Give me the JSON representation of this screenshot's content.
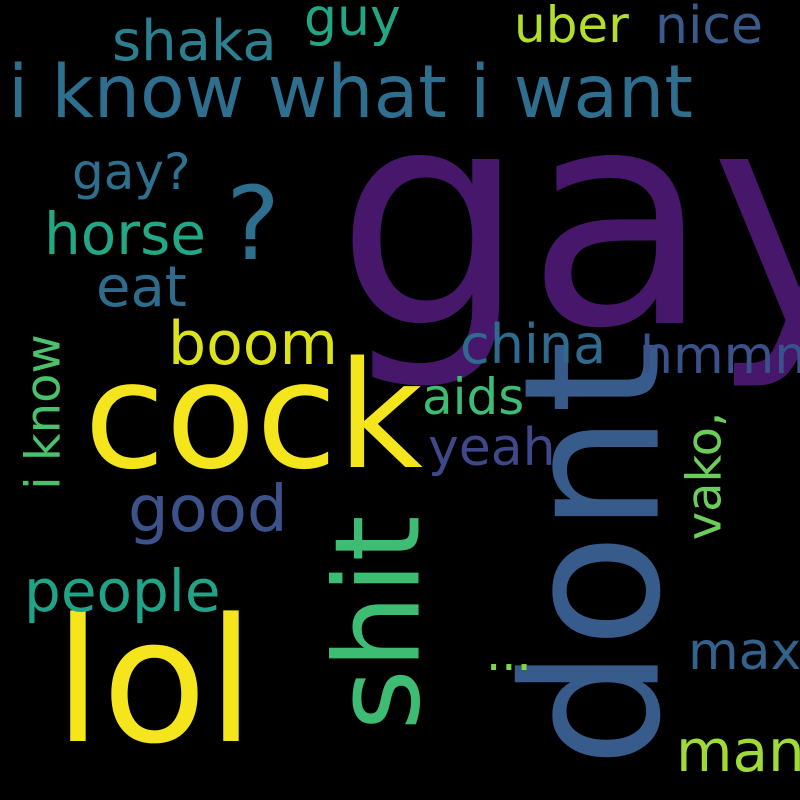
{
  "cloud": {
    "background": "#000000",
    "words": {
      "gay": {
        "text": "gay",
        "color": "#46176A"
      },
      "dont": {
        "text": "dont",
        "color": "#375C8C"
      },
      "cock": {
        "text": "cock",
        "color": "#F5E51D"
      },
      "lol": {
        "text": "lol",
        "color": "#F5E51D"
      },
      "shit": {
        "text": "shit",
        "color": "#3FBC73"
      },
      "iknowwhat": {
        "text": "i know what i want",
        "color": "#2E6E8E"
      },
      "qmark": {
        "text": "?",
        "color": "#2E6E8E"
      },
      "shaka": {
        "text": "shaka",
        "color": "#2B7F8E"
      },
      "guy": {
        "text": "guy",
        "color": "#22A784"
      },
      "uber": {
        "text": "uber",
        "color": "#B5DD2B"
      },
      "nice": {
        "text": "nice",
        "color": "#3B5B8B"
      },
      "gayq": {
        "text": "gay?",
        "color": "#2D718E"
      },
      "horse": {
        "text": "horse",
        "color": "#22A884"
      },
      "eat": {
        "text": "eat",
        "color": "#2E6C8E"
      },
      "boom": {
        "text": "boom",
        "color": "#DDE318"
      },
      "china": {
        "text": "china",
        "color": "#2F6B8E"
      },
      "hmmm": {
        "text": "hmmm",
        "color": "#3B518B"
      },
      "aids": {
        "text": "aids",
        "color": "#3FBC73"
      },
      "yeah": {
        "text": "yeah",
        "color": "#3F4889"
      },
      "good": {
        "text": "good",
        "color": "#3B528B"
      },
      "people": {
        "text": "people",
        "color": "#20A386"
      },
      "iknow": {
        "text": "i know",
        "color": "#4AC16D"
      },
      "vako": {
        "text": "vako,",
        "color": "#6CCD5A"
      },
      "dots": {
        "text": "...",
        "color": "#84D44B"
      },
      "max": {
        "text": "max",
        "color": "#33638D"
      },
      "man": {
        "text": "man",
        "color": "#A0DA39"
      }
    }
  }
}
